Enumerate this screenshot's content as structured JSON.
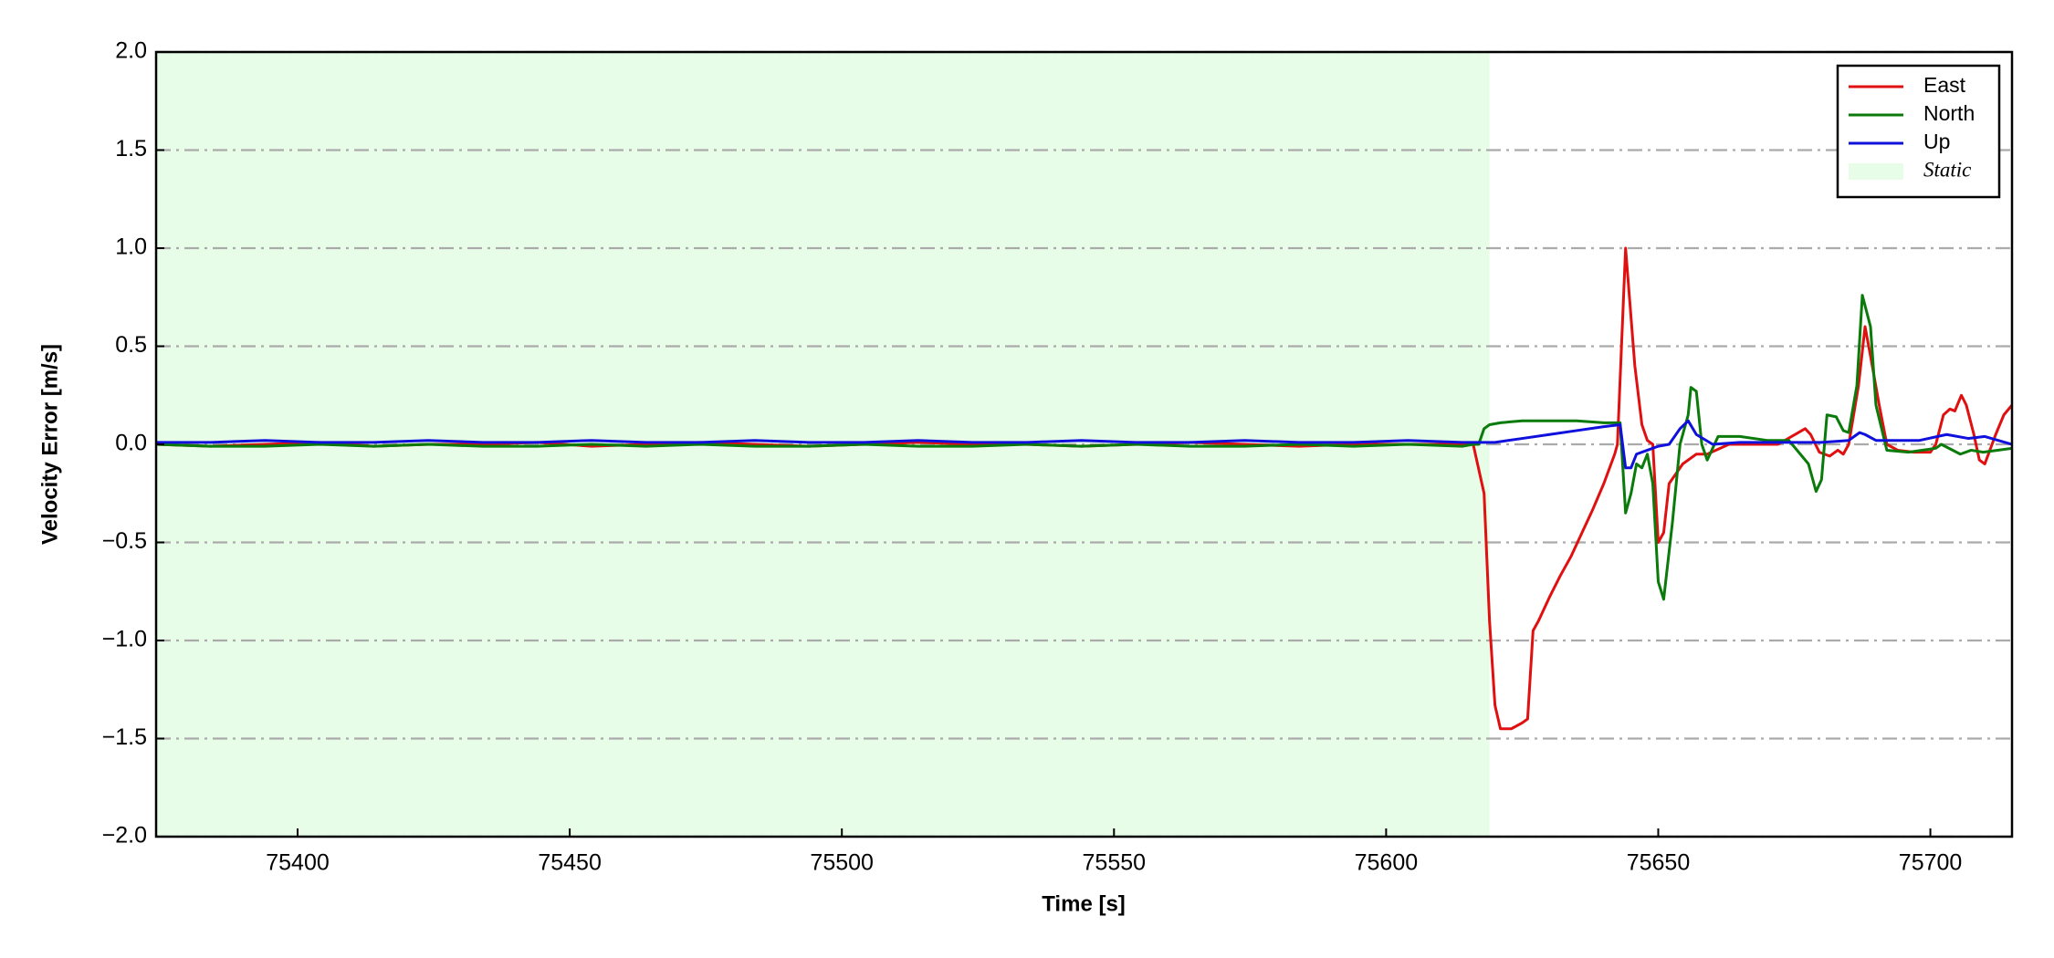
{
  "chart_data": {
    "type": "line",
    "xlabel": "Time [s]",
    "ylabel": "Velocity Error [m/s]",
    "xlim": [
      75374,
      75715
    ],
    "ylim": [
      -2,
      2
    ],
    "xticks": [
      75400,
      75450,
      75500,
      75550,
      75600,
      75650,
      75700
    ],
    "yticks": [
      {
        "value": -2,
        "label": "−2.0"
      },
      {
        "value": -1.5,
        "label": "−1.5"
      },
      {
        "value": -1,
        "label": "−1.0"
      },
      {
        "value": -0.5,
        "label": "−0.5"
      },
      {
        "value": 0,
        "label": "0.0"
      },
      0.5,
      {
        "value": 1,
        "label": "1.0"
      },
      1.5,
      {
        "value": 2,
        "label": "2.0"
      }
    ],
    "grid": true,
    "legend_position": "upper right",
    "shaded_regions": [
      {
        "label": "Static",
        "xlim": [
          75374,
          75619
        ],
        "color": "#e8fde8"
      }
    ],
    "series": [
      {
        "name": "East",
        "color": "#e01010",
        "x": [
          75374,
          75384,
          75394,
          75404,
          75414,
          75424,
          75434,
          75444,
          75454,
          75464,
          75474,
          75484,
          75494,
          75504,
          75514,
          75524,
          75534,
          75544,
          75554,
          75564,
          75574,
          75584,
          75594,
          75604,
          75614,
          75616,
          75618,
          75619,
          75620,
          75621,
          75623,
          75625,
          75626,
          75627,
          75628,
          75630,
          75632,
          75634,
          75636,
          75638,
          75640,
          75642,
          75642.5,
          75644,
          75645.7,
          75647,
          75648,
          75649,
          75650,
          75651,
          75652,
          75654.5,
          75657,
          75659,
          75663,
          75672,
          75677,
          75678,
          75679.6,
          75681.5,
          75683,
          75684,
          75685,
          75686.8,
          75688,
          75689,
          75690.6,
          75692,
          75694,
          75697,
          75700,
          75701,
          75702.4,
          75703.6,
          75704.5,
          75705.7,
          75706.6,
          75708,
          75709,
          75710,
          75712,
          75713.5,
          75715
        ],
        "values": [
          0,
          -0.01,
          0,
          0.01,
          -0.01,
          0,
          0,
          0.01,
          -0.01,
          0,
          0.01,
          0,
          -0.01,
          0,
          0.01,
          0,
          0,
          -0.01,
          0,
          0.01,
          0,
          -0.01,
          0,
          0,
          0,
          0,
          -0.25,
          -0.9,
          -1.33,
          -1.45,
          -1.45,
          -1.42,
          -1.4,
          -0.95,
          -0.9,
          -0.78,
          -0.67,
          -0.57,
          -0.45,
          -0.33,
          -0.2,
          -0.05,
          0,
          1.0,
          0.4,
          0.1,
          0.02,
          0,
          -0.5,
          -0.45,
          -0.2,
          -0.1,
          -0.05,
          -0.05,
          0,
          0,
          0.08,
          0.05,
          -0.04,
          -0.06,
          -0.03,
          -0.05,
          0,
          0.3,
          0.6,
          0.45,
          0.2,
          0,
          -0.03,
          -0.04,
          -0.04,
          0,
          0.15,
          0.18,
          0.17,
          0.25,
          0.2,
          0.05,
          -0.08,
          -0.1,
          0.05,
          0.15,
          0.2
        ]
      },
      {
        "name": "North",
        "color": "#0a7a0a",
        "x": [
          75374,
          75384,
          75394,
          75404,
          75414,
          75424,
          75434,
          75444,
          75454,
          75464,
          75474,
          75484,
          75494,
          75504,
          75514,
          75524,
          75534,
          75544,
          75554,
          75564,
          75574,
          75584,
          75594,
          75604,
          75614,
          75616,
          75617,
          75618,
          75619,
          75621,
          75625,
          75630,
          75635,
          75640,
          75643,
          75644,
          75645,
          75646,
          75647,
          75648,
          75649,
          75650,
          75651,
          75652.6,
          75654,
          75655.5,
          75656,
          75657,
          75658,
          75659,
          75661,
          75665,
          75670,
          75674,
          75677.6,
          75679,
          75680,
          75681,
          75682.7,
          75684,
          75685,
          75686.5,
          75687.5,
          75689,
          75690,
          75692,
          75696,
          75701,
          75702,
          75705.5,
          75707.5,
          75709.7,
          75715
        ],
        "values": [
          0,
          -0.01,
          -0.01,
          0,
          -0.01,
          0,
          -0.01,
          -0.01,
          0,
          -0.01,
          0,
          -0.01,
          -0.01,
          0,
          -0.01,
          -0.01,
          0,
          -0.01,
          0,
          -0.01,
          -0.01,
          0,
          -0.01,
          0,
          -0.01,
          0,
          0,
          0.08,
          0.1,
          0.11,
          0.12,
          0.12,
          0.12,
          0.11,
          0.11,
          -0.35,
          -0.25,
          -0.1,
          -0.12,
          -0.05,
          -0.2,
          -0.7,
          -0.79,
          -0.4,
          0,
          0.15,
          0.29,
          0.27,
          0,
          -0.08,
          0.04,
          0.04,
          0.02,
          0.02,
          -0.1,
          -0.24,
          -0.18,
          0.15,
          0.14,
          0.07,
          0.06,
          0.3,
          0.76,
          0.6,
          0.2,
          -0.03,
          -0.04,
          -0.02,
          0,
          -0.05,
          -0.03,
          -0.04,
          -0.02
        ]
      },
      {
        "name": "Up",
        "color": "#1010dd",
        "x": [
          75374,
          75384,
          75394,
          75404,
          75414,
          75424,
          75434,
          75444,
          75454,
          75464,
          75474,
          75484,
          75494,
          75504,
          75514,
          75524,
          75534,
          75544,
          75554,
          75564,
          75574,
          75584,
          75594,
          75604,
          75614,
          75616,
          75620,
          75625,
          75630,
          75635,
          75640,
          75643,
          75644,
          75645,
          75646,
          75648,
          75650,
          75652,
          75654,
          75655.5,
          75657,
          75660,
          75665,
          75670,
          75680,
          75685,
          75687,
          75688,
          75690,
          75698,
          75703,
          75707,
          75710,
          75715
        ],
        "values": [
          0.01,
          0.01,
          0.02,
          0.01,
          0.01,
          0.02,
          0.01,
          0.01,
          0.02,
          0.01,
          0.01,
          0.02,
          0.01,
          0.01,
          0.02,
          0.01,
          0.01,
          0.02,
          0.01,
          0.01,
          0.02,
          0.01,
          0.01,
          0.02,
          0.01,
          0.01,
          0.01,
          0.03,
          0.05,
          0.07,
          0.09,
          0.1,
          -0.12,
          -0.12,
          -0.05,
          -0.03,
          -0.01,
          0,
          0.08,
          0.12,
          0.05,
          0,
          0.01,
          0.01,
          0.01,
          0.02,
          0.06,
          0.05,
          0.02,
          0.02,
          0.05,
          0.03,
          0.04,
          0
        ]
      }
    ]
  }
}
